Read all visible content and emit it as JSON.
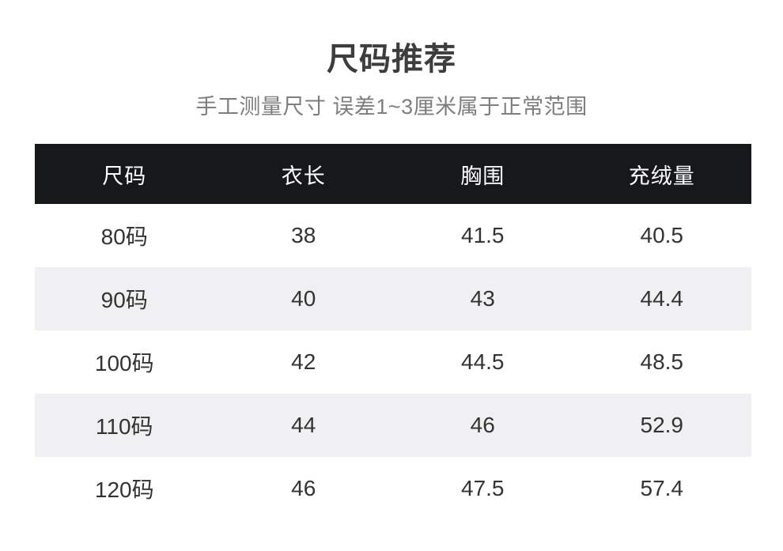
{
  "page": {
    "title": "尺码推荐",
    "subtitle": "手工测量尺寸 误差1~3厘米属于正常范围"
  },
  "colors": {
    "header_bg": "#17181c",
    "header_text": "#ffffff",
    "row_bg": "#ffffff",
    "row_alt_bg": "#f0f0f2",
    "title_text": "#3d3d3d",
    "subtitle_text": "#7e7e7e",
    "cell_text": "#333333"
  },
  "table": {
    "columns": [
      "尺码",
      "衣长",
      "胸围",
      "充绒量"
    ],
    "rows": [
      [
        "80码",
        "38",
        "41.5",
        "40.5"
      ],
      [
        "90码",
        "40",
        "43",
        "44.4"
      ],
      [
        "100码",
        "42",
        "44.5",
        "48.5"
      ],
      [
        "110码",
        "44",
        "46",
        "52.9"
      ],
      [
        "120码",
        "46",
        "47.5",
        "57.4"
      ]
    ]
  },
  "chart_data": {
    "type": "table",
    "title": "尺码推荐",
    "subtitle": "手工测量尺寸 误差1~3厘米属于正常范围",
    "columns": [
      "尺码",
      "衣长",
      "胸围",
      "充绒量"
    ],
    "rows": [
      {
        "尺码": "80码",
        "衣长": 38,
        "胸围": 41.5,
        "充绒量": 40.5
      },
      {
        "尺码": "90码",
        "衣长": 40,
        "胸围": 43,
        "充绒量": 44.4
      },
      {
        "尺码": "100码",
        "衣长": 42,
        "胸围": 44.5,
        "充绒量": 48.5
      },
      {
        "尺码": "110码",
        "衣长": 44,
        "胸围": 46,
        "充绒量": 52.9
      },
      {
        "尺码": "120码",
        "衣长": 46,
        "胸围": 47.5,
        "充绒量": 57.4
      }
    ],
    "layout_hints": {
      "header_style": "black-bar-white-text",
      "row_striping": "white / light-gray alternating",
      "cell_alignment": "center"
    }
  }
}
